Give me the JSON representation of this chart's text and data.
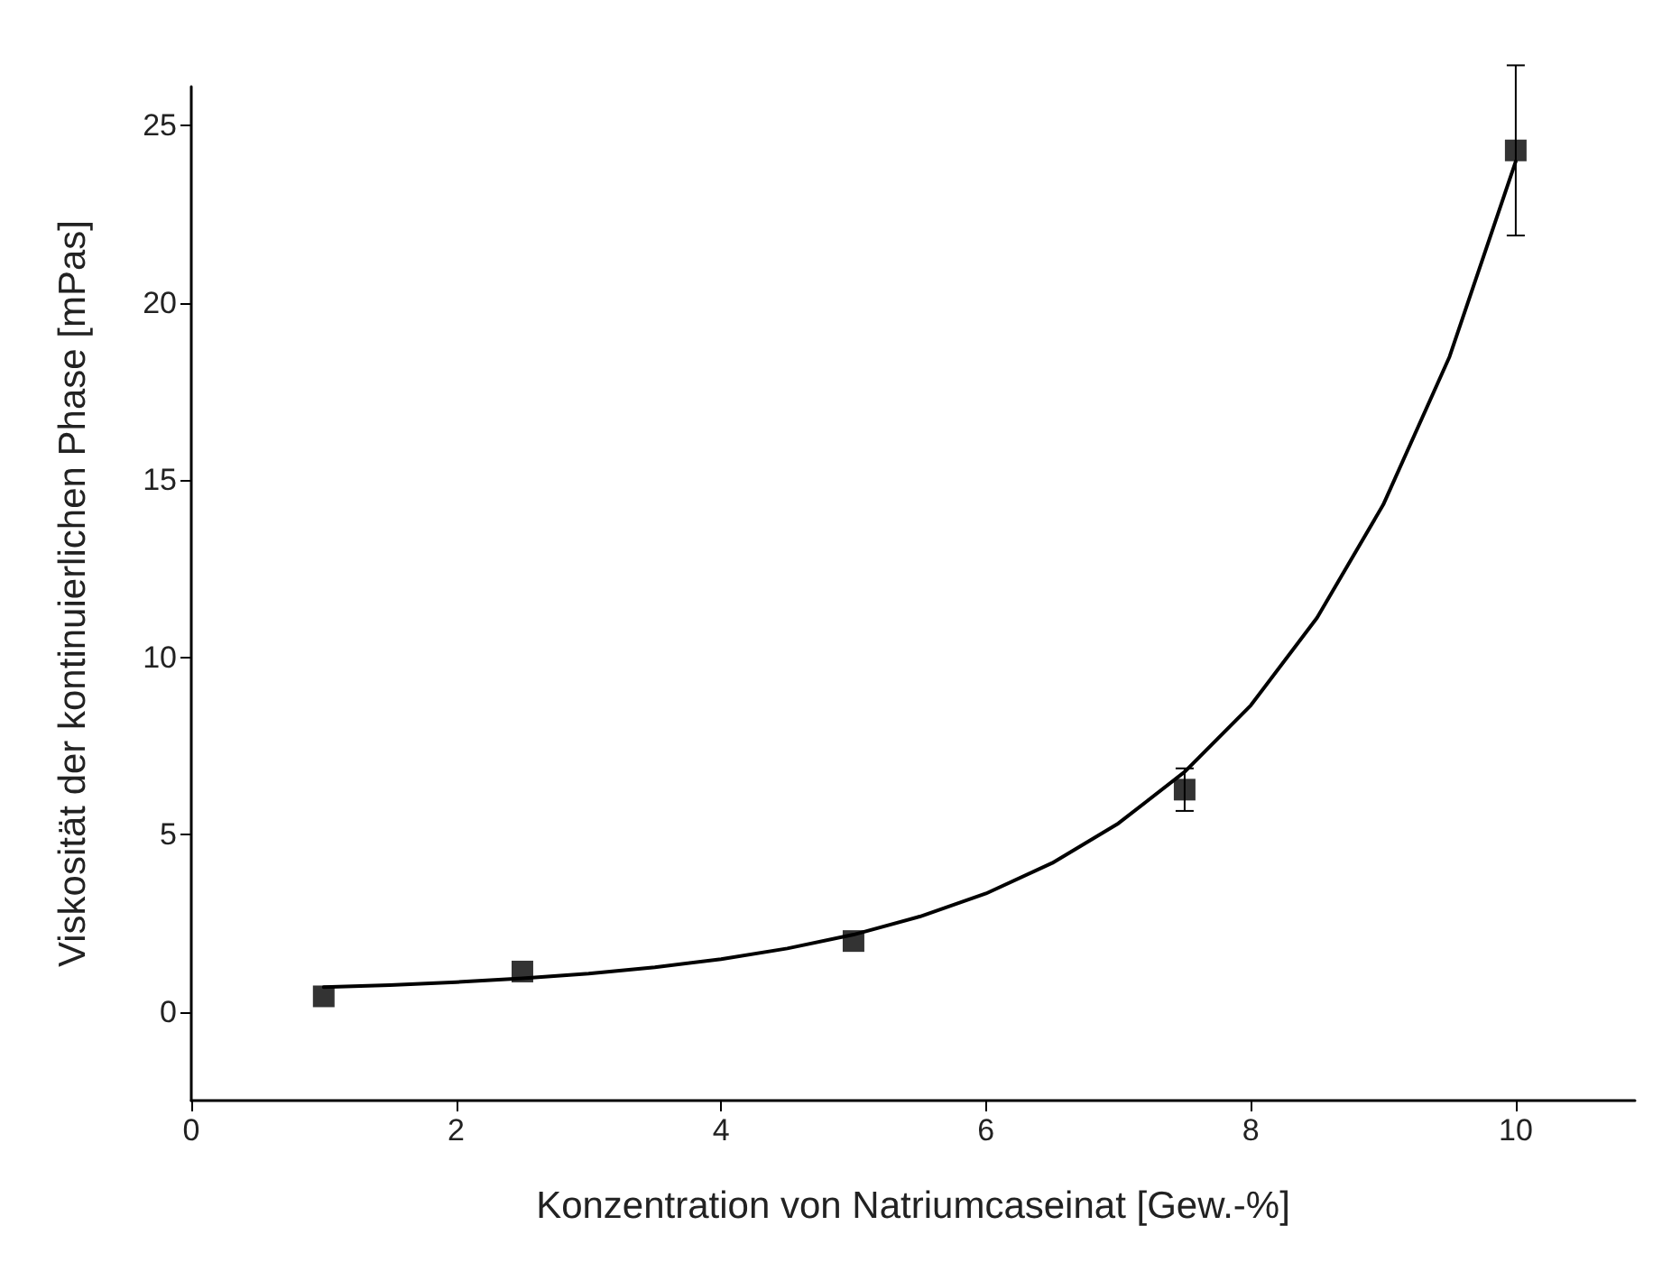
{
  "chart_data": {
    "type": "scatter",
    "xlabel": "Konzentration von Natriumcaseinat [Gew.-%]",
    "ylabel": "Viskosität der kontinuierlichen Phase [mPas]",
    "xlim": [
      0,
      10.9
    ],
    "xticks": [
      0,
      2,
      4,
      6,
      8,
      10
    ],
    "ylim": [
      -2.5,
      26.1
    ],
    "yticks": [
      0,
      5,
      10,
      15,
      20,
      25
    ],
    "grid": false,
    "series": [
      {
        "color": "#000000",
        "marker": "square",
        "x": [
          1,
          2.5,
          5,
          7.5,
          10
        ],
        "values": [
          0.44,
          1.14,
          2.0,
          6.27,
          24.3
        ],
        "errors": [
          null,
          null,
          null,
          0.6,
          2.4
        ]
      },
      {
        "type": "line",
        "color": "#000000",
        "marker": "none",
        "line_style": "solid",
        "x": [
          1,
          1.5,
          2,
          2.5,
          3,
          3.5,
          4,
          4.5,
          5,
          5.5,
          6,
          6.5,
          7,
          7.5,
          8,
          8.5,
          9,
          9.5,
          10
        ],
        "values": [
          0.7,
          0.76,
          0.84,
          0.95,
          1.08,
          1.26,
          1.49,
          1.79,
          2.18,
          2.69,
          3.34,
          4.2,
          5.32,
          6.77,
          8.65,
          11.12,
          14.31,
          18.48,
          23.99
        ]
      }
    ]
  }
}
